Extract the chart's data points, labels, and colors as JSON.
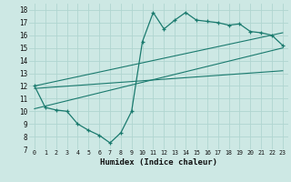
{
  "xlabel": "Humidex (Indice chaleur)",
  "xlim": [
    -0.5,
    23.5
  ],
  "ylim": [
    7,
    18.5
  ],
  "xticks": [
    0,
    1,
    2,
    3,
    4,
    5,
    6,
    7,
    8,
    9,
    10,
    11,
    12,
    13,
    14,
    15,
    16,
    17,
    18,
    19,
    20,
    21,
    22,
    23
  ],
  "yticks": [
    7,
    8,
    9,
    10,
    11,
    12,
    13,
    14,
    15,
    16,
    17,
    18
  ],
  "bg_color": "#cde8e4",
  "grid_color": "#b0d5d0",
  "line_color": "#1a7a6e",
  "main_data_x": [
    0,
    1,
    2,
    3,
    4,
    5,
    6,
    7,
    8,
    9,
    10,
    11,
    12,
    13,
    14,
    15,
    16,
    17,
    18,
    19,
    20,
    21,
    22,
    23
  ],
  "main_data_y": [
    12,
    10.3,
    10.1,
    10.0,
    9.0,
    8.5,
    8.1,
    7.5,
    8.3,
    10.0,
    15.5,
    17.8,
    16.5,
    17.2,
    17.8,
    17.2,
    17.1,
    17.0,
    16.8,
    16.9,
    16.3,
    16.2,
    16.0,
    15.2
  ],
  "line1_x": [
    0,
    23
  ],
  "line1_y": [
    11.8,
    13.2
  ],
  "line2_x": [
    0,
    23
  ],
  "line2_y": [
    12.0,
    16.2
  ],
  "line3_x": [
    0,
    23
  ],
  "line3_y": [
    10.2,
    15.0
  ]
}
